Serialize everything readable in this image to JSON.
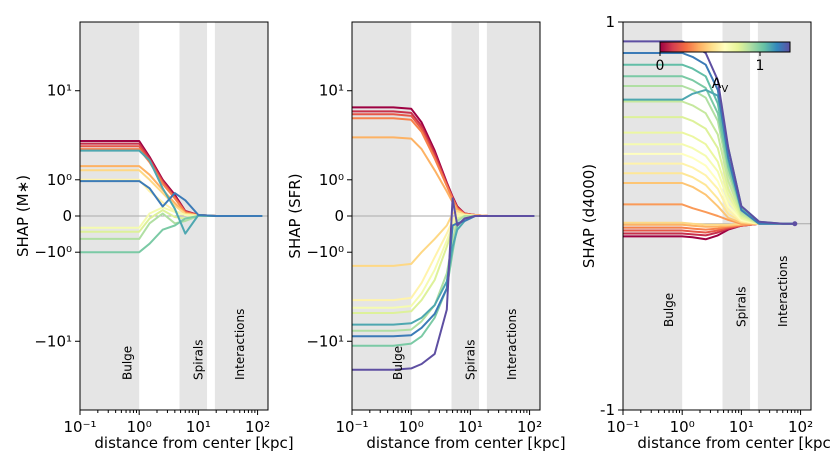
{
  "chart_data": [
    {
      "type": "line",
      "id": "mstar",
      "ylabel": "SHAP (M$*$)",
      "ylabel_text": "SHAP (M∗)",
      "xlabel": "distance from center [kpc]",
      "xscale": "log",
      "yscale": "symlog",
      "xlim": [
        0.1,
        150
      ],
      "ylim": [
        -40,
        40
      ],
      "xticks": [
        {
          "v": 0.1,
          "label": "10⁻¹"
        },
        {
          "v": 1,
          "label": "10⁰"
        },
        {
          "v": 10,
          "label": "10¹"
        },
        {
          "v": 100,
          "label": "10²"
        }
      ],
      "yticks": [
        {
          "v": 10,
          "label": "10¹"
        },
        {
          "v": 1,
          "label": "10⁰"
        },
        {
          "v": 0,
          "label": "0"
        },
        {
          "v": -1,
          "label": "−10⁰"
        },
        {
          "v": -10,
          "label": "−10¹"
        }
      ],
      "regions": [
        {
          "name": "Bulge",
          "x0": 0.1,
          "x1": 1,
          "label_x": 0.63
        },
        {
          "name": "Spirals",
          "x0": 4.8,
          "x1": 14,
          "label_x": 10
        },
        {
          "name": "Interactions",
          "x0": 19,
          "x1": 150,
          "label_x": 50
        }
      ],
      "x": [
        0.1,
        0.2,
        0.5,
        1.0,
        1.5,
        2.5,
        4.0,
        6.0,
        10.0,
        20.0,
        50.0,
        120.0
      ],
      "series": [
        {
          "av": 0.0,
          "values": [
            3.2,
            3.2,
            3.2,
            3.2,
            2.1,
            1.0,
            0.5,
            0.1,
            0.02,
            0.0,
            0.0,
            0.0
          ]
        },
        {
          "av": 0.1,
          "values": [
            3.0,
            3.0,
            3.0,
            3.0,
            2.0,
            0.95,
            0.45,
            0.09,
            0.02,
            0.0,
            0.0,
            0.0
          ]
        },
        {
          "av": 0.2,
          "values": [
            2.8,
            2.8,
            2.8,
            2.8,
            1.9,
            0.9,
            0.42,
            0.08,
            0.02,
            0.0,
            0.0,
            0.0
          ]
        },
        {
          "av": 0.3,
          "values": [
            2.6,
            2.6,
            2.6,
            2.6,
            1.8,
            0.85,
            0.4,
            0.07,
            0.01,
            0.0,
            0.0,
            0.0
          ]
        },
        {
          "av": 0.4,
          "values": [
            1.6,
            1.6,
            1.6,
            1.6,
            1.2,
            0.65,
            0.28,
            0.05,
            0.01,
            0.0,
            0.0,
            0.0
          ]
        },
        {
          "av": 0.5,
          "values": [
            1.4,
            1.4,
            1.4,
            1.4,
            1.0,
            0.55,
            0.22,
            0.04,
            0.01,
            0.0,
            0.0,
            0.0
          ]
        },
        {
          "av": 0.6,
          "values": [
            1.0,
            1.0,
            1.0,
            1.0,
            0.6,
            0.3,
            0.1,
            0.02,
            0.0,
            0.0,
            0.0,
            0.0
          ]
        },
        {
          "av": 0.7,
          "values": [
            -0.25,
            -0.25,
            -0.25,
            -0.25,
            0.05,
            0.18,
            0.08,
            0.02,
            0.0,
            0.0,
            0.0,
            0.0
          ]
        },
        {
          "av": 0.8,
          "values": [
            -0.35,
            -0.35,
            -0.35,
            -0.35,
            -0.05,
            0.12,
            -0.02,
            -0.05,
            0.0,
            0.0,
            0.0,
            0.0
          ]
        },
        {
          "av": 0.9,
          "values": [
            -0.55,
            -0.55,
            -0.55,
            -0.55,
            -0.15,
            0.05,
            -0.15,
            -0.1,
            0.0,
            0.0,
            0.0,
            0.0
          ]
        },
        {
          "av": 1.0,
          "values": [
            -1.0,
            -1.0,
            -1.0,
            -1.0,
            -0.7,
            -0.3,
            -0.2,
            -0.05,
            0.0,
            0.0,
            0.0,
            0.0
          ]
        },
        {
          "av": 1.1,
          "values": [
            2.5,
            2.5,
            2.5,
            2.5,
            1.9,
            0.7,
            0.15,
            -0.4,
            0.02,
            0.0,
            0.0,
            0.0
          ]
        },
        {
          "av": 1.2,
          "values": [
            0.95,
            0.95,
            0.95,
            0.95,
            0.7,
            0.2,
            0.55,
            0.35,
            0.02,
            0.0,
            0.0,
            0.0
          ]
        }
      ]
    },
    {
      "type": "line",
      "id": "sfr",
      "ylabel": "SHAP (SFR)",
      "xlabel": "distance from center [kpc]",
      "xscale": "log",
      "yscale": "symlog",
      "xlim": [
        0.1,
        150
      ],
      "ylim": [
        -40,
        40
      ],
      "xticks": [
        {
          "v": 0.1,
          "label": "10⁻¹"
        },
        {
          "v": 1,
          "label": "10⁰"
        },
        {
          "v": 10,
          "label": "10¹"
        },
        {
          "v": 100,
          "label": "10²"
        }
      ],
      "yticks": [
        {
          "v": 10,
          "label": "10¹"
        },
        {
          "v": 1,
          "label": "10⁰"
        },
        {
          "v": 0,
          "label": "0"
        },
        {
          "v": -1,
          "label": "−10⁰"
        },
        {
          "v": -10,
          "label": "−10¹"
        }
      ],
      "regions": [
        {
          "name": "Bulge",
          "x0": 0.1,
          "x1": 1,
          "label_x": 0.6
        },
        {
          "name": "Spirals",
          "x0": 4.8,
          "x1": 14,
          "label_x": 10
        },
        {
          "name": "Interactions",
          "x0": 19,
          "x1": 150,
          "label_x": 50
        }
      ],
      "x": [
        0.1,
        0.2,
        0.5,
        1.0,
        1.5,
        2.5,
        4.0,
        5.0,
        6.0,
        8.0,
        12.0,
        20.0,
        50.0,
        120.0
      ],
      "series": [
        {
          "av": 0.0,
          "values": [
            7.0,
            7.0,
            7.0,
            6.8,
            5.0,
            2.5,
            0.9,
            0.45,
            0.2,
            0.05,
            0.02,
            0.0,
            0.0,
            0.0
          ]
        },
        {
          "av": 0.1,
          "values": [
            6.4,
            6.4,
            6.4,
            6.2,
            4.6,
            2.3,
            0.85,
            0.42,
            0.18,
            0.05,
            0.02,
            0.0,
            0.0,
            0.0
          ]
        },
        {
          "av": 0.2,
          "values": [
            6.0,
            6.0,
            6.0,
            5.8,
            4.3,
            2.1,
            0.8,
            0.4,
            0.16,
            0.04,
            0.02,
            0.0,
            0.0,
            0.0
          ]
        },
        {
          "av": 0.3,
          "values": [
            5.5,
            5.5,
            5.5,
            5.3,
            4.0,
            2.0,
            0.78,
            0.38,
            0.15,
            0.04,
            0.02,
            0.0,
            0.0,
            0.0
          ]
        },
        {
          "av": 0.4,
          "values": [
            3.5,
            3.5,
            3.5,
            3.4,
            2.6,
            1.4,
            0.6,
            0.3,
            0.12,
            0.03,
            0.01,
            0.0,
            0.0,
            0.0
          ]
        },
        {
          "av": 0.5,
          "values": [
            -1.6,
            -1.6,
            -1.6,
            -1.5,
            -1.0,
            -0.55,
            -0.2,
            0.05,
            0.1,
            0.03,
            0.01,
            0.0,
            0.0,
            0.0
          ]
        },
        {
          "av": 0.6,
          "values": [
            -4.0,
            -4.0,
            -4.0,
            -3.8,
            -2.6,
            -1.2,
            -0.4,
            -0.1,
            0.05,
            0.02,
            0.01,
            0.0,
            0.0,
            0.0
          ]
        },
        {
          "av": 0.7,
          "values": [
            -4.8,
            -4.8,
            -4.8,
            -4.6,
            -3.4,
            -1.8,
            -0.6,
            -0.2,
            0.0,
            0.01,
            0.0,
            0.0,
            0.0,
            0.0
          ]
        },
        {
          "av": 0.8,
          "values": [
            -5.4,
            -5.4,
            -5.4,
            -5.2,
            -4.0,
            -2.4,
            -0.8,
            -0.3,
            -0.05,
            0.0,
            0.0,
            0.0,
            0.0,
            0.0
          ]
        },
        {
          "av": 0.9,
          "values": [
            -8.0,
            -8.0,
            -8.0,
            -7.8,
            -6.5,
            -4.5,
            -2.0,
            -0.6,
            -0.1,
            0.0,
            0.0,
            0.0,
            0.0,
            0.0
          ]
        },
        {
          "av": 1.0,
          "values": [
            -11.0,
            -11.0,
            -11.0,
            -10.5,
            -9.0,
            -6.0,
            -3.0,
            -1.0,
            -0.2,
            -0.05,
            0.0,
            0.0,
            0.0,
            0.0
          ]
        },
        {
          "av": 1.1,
          "values": [
            -7.0,
            -7.0,
            -7.0,
            -6.8,
            -6.0,
            -4.5,
            -2.5,
            -0.8,
            -0.3,
            -0.1,
            0.0,
            0.0,
            0.0,
            0.0
          ]
        },
        {
          "av": 1.2,
          "values": [
            -9.0,
            -9.0,
            -9.0,
            -8.8,
            -7.5,
            -5.5,
            -3.0,
            -0.2,
            -0.15,
            -0.1,
            0.0,
            0.0,
            0.0,
            0.0
          ]
        },
        {
          "av": 1.3,
          "values": [
            -18.0,
            -18.0,
            -18.0,
            -17.5,
            -16.0,
            -13.0,
            -5.0,
            0.4,
            -0.2,
            -0.05,
            0.0,
            0.0,
            0.0,
            0.0
          ]
        }
      ]
    },
    {
      "type": "line",
      "id": "d4000",
      "ylabel": "SHAP (d4000)",
      "xlabel": "distance from center [kpc]",
      "xscale": "log",
      "yscale": "linear",
      "xlim": [
        0.1,
        150
      ],
      "ylim": [
        -1,
        1
      ],
      "xticks": [
        {
          "v": 0.1,
          "label": "10⁻¹"
        },
        {
          "v": 1,
          "label": "10⁰"
        },
        {
          "v": 10,
          "label": "10¹"
        },
        {
          "v": 100,
          "label": "10²"
        }
      ],
      "yticks": [
        {
          "v": 1,
          "label": "1"
        },
        {
          "v": -1,
          "label": "-1"
        }
      ],
      "regions": [
        {
          "name": "Bulge",
          "x0": 0.1,
          "x1": 1,
          "label_x": 0.6
        },
        {
          "name": "Spirals",
          "x0": 4.8,
          "x1": 14,
          "label_x": 10
        },
        {
          "name": "Interactions",
          "x0": 19,
          "x1": 150,
          "label_x": 50
        }
      ],
      "x": [
        0.1,
        0.2,
        0.5,
        1.0,
        1.5,
        2.5,
        4.0,
        6.0,
        10.0,
        20.0,
        50.0,
        80.0
      ],
      "series": [
        {
          "av": 0.0,
          "values": [
            -0.105,
            -0.105,
            -0.105,
            -0.105,
            -0.11,
            -0.12,
            -0.1,
            -0.07,
            -0.05,
            -0.04,
            -0.04,
            -0.04
          ]
        },
        {
          "av": 0.1,
          "values": [
            -0.09,
            -0.09,
            -0.09,
            -0.09,
            -0.095,
            -0.1,
            -0.085,
            -0.065,
            -0.05,
            -0.04,
            -0.04,
            -0.04
          ]
        },
        {
          "av": 0.2,
          "values": [
            -0.075,
            -0.075,
            -0.075,
            -0.075,
            -0.08,
            -0.085,
            -0.075,
            -0.06,
            -0.05,
            -0.04,
            -0.04,
            -0.04
          ]
        },
        {
          "av": 0.3,
          "values": [
            -0.06,
            -0.06,
            -0.06,
            -0.06,
            -0.065,
            -0.07,
            -0.065,
            -0.055,
            -0.045,
            -0.04,
            -0.04,
            -0.04
          ]
        },
        {
          "av": 0.4,
          "values": [
            -0.045,
            -0.045,
            -0.045,
            -0.045,
            -0.05,
            -0.055,
            -0.055,
            -0.05,
            -0.045,
            -0.04,
            -0.04,
            -0.04
          ]
        },
        {
          "av": 0.5,
          "values": [
            -0.035,
            -0.035,
            -0.035,
            -0.035,
            -0.04,
            -0.045,
            -0.045,
            -0.045,
            -0.04,
            -0.04,
            -0.04,
            -0.04
          ]
        },
        {
          "av": 0.35,
          "values": [
            0.06,
            0.06,
            0.06,
            0.06,
            0.04,
            0.02,
            0.0,
            -0.02,
            -0.04,
            -0.04,
            -0.04,
            -0.04
          ]
        },
        {
          "av": 0.45,
          "values": [
            0.17,
            0.17,
            0.17,
            0.17,
            0.15,
            0.11,
            0.05,
            -0.01,
            -0.035,
            -0.04,
            -0.04,
            -0.04
          ]
        },
        {
          "av": 0.55,
          "values": [
            0.22,
            0.22,
            0.22,
            0.22,
            0.2,
            0.16,
            0.09,
            0.01,
            -0.03,
            -0.04,
            -0.04,
            -0.04
          ]
        },
        {
          "av": 0.6,
          "values": [
            0.27,
            0.27,
            0.27,
            0.27,
            0.25,
            0.21,
            0.14,
            0.03,
            -0.025,
            -0.04,
            -0.04,
            -0.04
          ]
        },
        {
          "av": 0.65,
          "values": [
            0.32,
            0.32,
            0.32,
            0.32,
            0.3,
            0.26,
            0.18,
            0.05,
            -0.02,
            -0.04,
            -0.04,
            -0.04
          ]
        },
        {
          "av": 0.7,
          "values": [
            0.37,
            0.37,
            0.37,
            0.37,
            0.35,
            0.31,
            0.23,
            0.08,
            -0.015,
            -0.04,
            -0.04,
            -0.04
          ]
        },
        {
          "av": 0.75,
          "values": [
            0.43,
            0.43,
            0.43,
            0.43,
            0.41,
            0.37,
            0.28,
            0.11,
            -0.01,
            -0.04,
            -0.04,
            -0.04
          ]
        },
        {
          "av": 0.8,
          "values": [
            0.51,
            0.51,
            0.51,
            0.51,
            0.49,
            0.45,
            0.35,
            0.14,
            0.0,
            -0.04,
            -0.04,
            -0.04
          ]
        },
        {
          "av": 0.85,
          "values": [
            0.59,
            0.59,
            0.59,
            0.59,
            0.57,
            0.53,
            0.42,
            0.18,
            0.01,
            -0.04,
            -0.04,
            -0.04
          ]
        },
        {
          "av": 0.9,
          "values": [
            0.67,
            0.67,
            0.67,
            0.67,
            0.65,
            0.61,
            0.49,
            0.22,
            0.02,
            -0.04,
            -0.04,
            -0.04
          ]
        },
        {
          "av": 1.0,
          "values": [
            0.72,
            0.72,
            0.72,
            0.72,
            0.7,
            0.66,
            0.53,
            0.25,
            0.03,
            -0.04,
            -0.04,
            -0.04
          ]
        },
        {
          "av": 1.05,
          "values": [
            0.78,
            0.78,
            0.78,
            0.78,
            0.76,
            0.72,
            0.58,
            0.28,
            0.04,
            -0.04,
            -0.04,
            -0.04
          ]
        },
        {
          "av": 1.1,
          "values": [
            0.6,
            0.6,
            0.6,
            0.6,
            0.63,
            0.65,
            0.62,
            0.35,
            0.05,
            -0.03,
            -0.04,
            -0.04
          ]
        },
        {
          "av": 1.2,
          "values": [
            0.84,
            0.84,
            0.84,
            0.84,
            0.82,
            0.78,
            0.65,
            0.3,
            0.03,
            -0.04,
            -0.04,
            -0.04
          ]
        },
        {
          "av": 1.3,
          "values": [
            0.9,
            0.9,
            0.9,
            0.9,
            0.88,
            0.84,
            0.7,
            0.35,
            0.05,
            -0.03,
            -0.04,
            -0.04
          ]
        }
      ],
      "colorbar": {
        "label": "A",
        "label_sub": "V",
        "vmin": 0,
        "vmax": 1.3,
        "ticks": [
          {
            "v": 0,
            "label": "0"
          },
          {
            "v": 1,
            "label": "1"
          }
        ],
        "colormap": "Spectral"
      }
    }
  ]
}
